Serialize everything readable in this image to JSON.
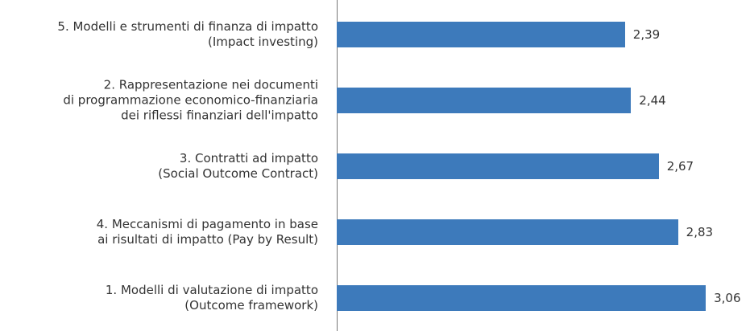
{
  "chart_data": {
    "type": "bar",
    "orientation": "horizontal",
    "categories": [
      "5. Modelli e strumenti di finanza di impatto\n(Impact investing)",
      "2. Rappresentazione nei documenti\ndi programmazione economico-finanziaria\ndei riflessi finanziari dell'impatto",
      "3. Contratti ad impatto\n(Social Outcome Contract)",
      "4. Meccanismi di pagamento in base\nai risultati di impatto (Pay by Result)",
      "1. Modelli di valutazione di impatto\n(Outcome framework)"
    ],
    "values": [
      2.39,
      2.44,
      2.67,
      2.83,
      3.06
    ],
    "value_labels": [
      "2,39",
      "2,44",
      "2,67",
      "2,83",
      "3,06"
    ],
    "color": "#3d7abb",
    "xlim": [
      0,
      3.4
    ]
  }
}
